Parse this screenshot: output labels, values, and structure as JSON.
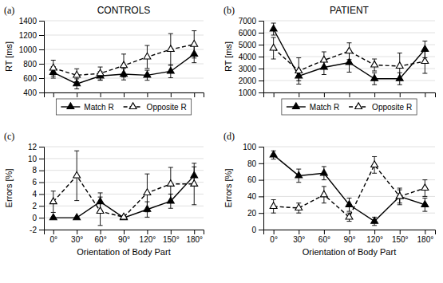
{
  "chart_data": [
    {
      "type": "line",
      "title": "CONTROLS",
      "annotations": [
        "(a)"
      ],
      "ylabel": "RT [ms]",
      "x": [
        0,
        30,
        60,
        90,
        120,
        150,
        180
      ],
      "xlim": [
        -12,
        192
      ],
      "xticks": [
        0,
        30,
        60,
        90,
        120,
        150,
        180
      ],
      "ylim": [
        400,
        1400
      ],
      "yticks": [
        400,
        600,
        800,
        1000,
        1200,
        1400
      ],
      "grid": "y",
      "legend": "bottom",
      "tick_labels": "y",
      "series": [
        {
          "name": "Match R",
          "color": "black",
          "marker": "triangle",
          "line_style": "solid",
          "values": [
            680,
            520,
            630,
            655,
            640,
            695,
            935
          ],
          "errors": [
            80,
            70,
            60,
            80,
            70,
            90,
            120
          ]
        },
        {
          "name": "Opposite R",
          "color": "black",
          "marker": "triangle-open",
          "line_style": "dashed",
          "values": [
            740,
            640,
            665,
            775,
            895,
            1000,
            1070
          ],
          "errors": [
            110,
            90,
            90,
            160,
            160,
            220,
            190
          ]
        }
      ]
    },
    {
      "type": "line",
      "title": "PATIENT",
      "annotations": [
        "(b)"
      ],
      "ylabel": "RT [ms]",
      "x": [
        0,
        30,
        60,
        90,
        120,
        150,
        180
      ],
      "xlim": [
        -12,
        192
      ],
      "xticks": [
        0,
        30,
        60,
        90,
        120,
        150,
        180
      ],
      "ylim": [
        1000,
        7000
      ],
      "yticks": [
        1000,
        2000,
        3000,
        4000,
        5000,
        6000,
        7000
      ],
      "grid": "y",
      "legend": "bottom",
      "tick_labels": "y",
      "series": [
        {
          "name": "Match R",
          "color": "black",
          "marker": "triangle",
          "line_style": "solid",
          "values": [
            6300,
            2380,
            3100,
            3500,
            2150,
            2150,
            4600
          ],
          "errors": [
            500,
            400,
            600,
            800,
            500,
            500,
            700
          ]
        },
        {
          "name": "Opposite R",
          "color": "black",
          "marker": "triangle-open",
          "line_style": "dashed",
          "values": [
            4700,
            2800,
            3700,
            4450,
            3300,
            3200,
            3600
          ],
          "errors": [
            900,
            1100,
            700,
            700,
            500,
            1100,
            1000
          ]
        }
      ]
    },
    {
      "type": "line",
      "annotations": [
        "(c)"
      ],
      "xlabel": "Orientation of Body Part",
      "ylabel": "Errors [%]",
      "x": [
        0,
        30,
        60,
        90,
        120,
        150,
        180
      ],
      "xlim": [
        -12,
        192
      ],
      "xticks": [
        {
          "value": 0,
          "label": "0°"
        },
        {
          "value": 30,
          "label": "30°"
        },
        {
          "value": 60,
          "label": "60°"
        },
        {
          "value": 90,
          "label": "90°"
        },
        {
          "value": 120,
          "label": "120°"
        },
        {
          "value": 150,
          "label": "150°"
        },
        {
          "value": 180,
          "label": "180°"
        }
      ],
      "ylim": [
        -2,
        12
      ],
      "yticks": [
        -2,
        0,
        2,
        4,
        6,
        8,
        10,
        12
      ],
      "grid": "y",
      "series": [
        {
          "color": "black",
          "marker": "triangle",
          "line_style": "solid",
          "values": [
            0.0,
            0.0,
            2.7,
            0.0,
            1.4,
            2.8,
            7.1
          ],
          "errors": [
            0.1,
            0.1,
            1.5,
            0.1,
            1.3,
            1.2,
            1.5
          ]
        },
        {
          "color": "black",
          "marker": "triangle-open",
          "line_style": "dashed",
          "values": [
            2.7,
            7.1,
            1.1,
            0.1,
            4.2,
            5.7,
            5.7
          ],
          "errors": [
            1.8,
            4.2,
            2.4,
            0.1,
            3.2,
            2.8,
            3.5
          ]
        }
      ]
    },
    {
      "type": "line",
      "annotations": [
        "(d)"
      ],
      "xlabel": "Orientation of Body Part",
      "ylabel": "Errors [%]",
      "x": [
        0,
        30,
        60,
        90,
        120,
        150,
        180
      ],
      "xlim": [
        -12,
        192
      ],
      "xticks": [
        {
          "value": 0,
          "label": "0°"
        },
        {
          "value": 30,
          "label": "30°"
        },
        {
          "value": 60,
          "label": "60°"
        },
        {
          "value": 90,
          "label": "90°"
        },
        {
          "value": 120,
          "label": "120°"
        },
        {
          "value": 150,
          "label": "150°"
        },
        {
          "value": 180,
          "label": "180°"
        }
      ],
      "ylim": [
        0,
        100
      ],
      "yticks": [
        0,
        20,
        40,
        60,
        80,
        100
      ],
      "grid": "y",
      "series": [
        {
          "color": "black",
          "marker": "triangle",
          "line_style": "solid",
          "values": [
            90,
            65,
            68,
            30,
            10,
            40,
            30
          ],
          "errors": [
            5,
            8,
            8,
            8,
            5,
            8,
            8
          ]
        },
        {
          "color": "black",
          "marker": "triangle-open",
          "line_style": "dashed",
          "values": [
            28,
            26,
            42,
            15,
            78,
            40,
            50
          ],
          "errors": [
            8,
            6,
            10,
            5,
            10,
            10,
            10
          ]
        }
      ]
    }
  ]
}
